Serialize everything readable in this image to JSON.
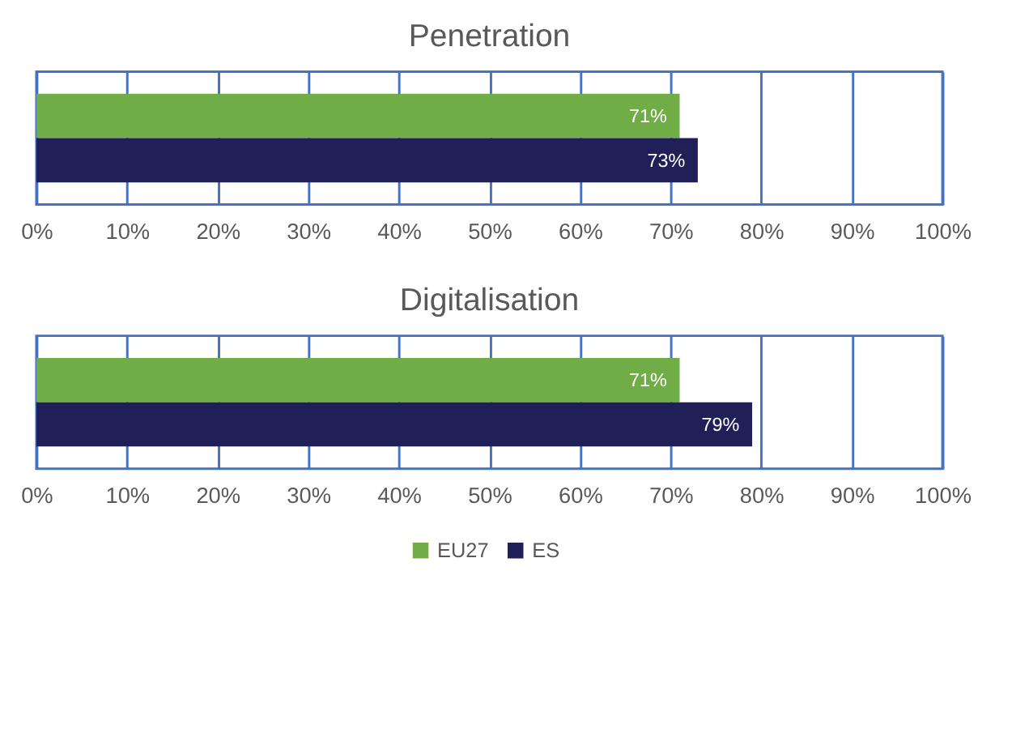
{
  "chart_data": [
    {
      "type": "bar",
      "title": "Penetration",
      "orientation": "horizontal",
      "categories": [
        null
      ],
      "series": [
        {
          "color": "#70ad47",
          "values": [
            71
          ],
          "value_labels": [
            "71%"
          ]
        },
        {
          "color": "#1f2058",
          "values": [
            73
          ],
          "value_labels": [
            "73%"
          ]
        }
      ],
      "xlim": [
        0,
        100
      ],
      "xticks": [
        {
          "value": 0,
          "label": "0%"
        },
        {
          "value": 10,
          "label": "10%"
        },
        {
          "value": 20,
          "label": "20%"
        },
        {
          "value": 30,
          "label": "30%"
        },
        {
          "value": 40,
          "label": "40%"
        },
        {
          "value": 50,
          "label": "50%"
        },
        {
          "value": 60,
          "label": "60%"
        },
        {
          "value": 70,
          "label": "70%"
        },
        {
          "value": 80,
          "label": "80%"
        },
        {
          "value": 90,
          "label": "90%"
        },
        {
          "value": 100,
          "label": "100%"
        }
      ],
      "grid": "x",
      "legend": false
    },
    {
      "type": "bar",
      "title": "Digitalisation",
      "orientation": "horizontal",
      "categories": [
        null
      ],
      "series": [
        {
          "name": "EU27",
          "color": "#70ad47",
          "values": [
            71
          ],
          "value_labels": [
            "71%"
          ]
        },
        {
          "name": "ES",
          "color": "#1f2058",
          "values": [
            79
          ],
          "value_labels": [
            "79%"
          ]
        }
      ],
      "xlim": [
        0,
        100
      ],
      "xticks": [
        {
          "value": 0,
          "label": "0%"
        },
        {
          "value": 10,
          "label": "10%"
        },
        {
          "value": 20,
          "label": "20%"
        },
        {
          "value": 30,
          "label": "30%"
        },
        {
          "value": 40,
          "label": "40%"
        },
        {
          "value": 50,
          "label": "50%"
        },
        {
          "value": 60,
          "label": "60%"
        },
        {
          "value": 70,
          "label": "70%"
        },
        {
          "value": 80,
          "label": "80%"
        },
        {
          "value": 90,
          "label": "90%"
        },
        {
          "value": 100,
          "label": "100%"
        }
      ],
      "grid": "x",
      "legend": "bottom"
    }
  ]
}
